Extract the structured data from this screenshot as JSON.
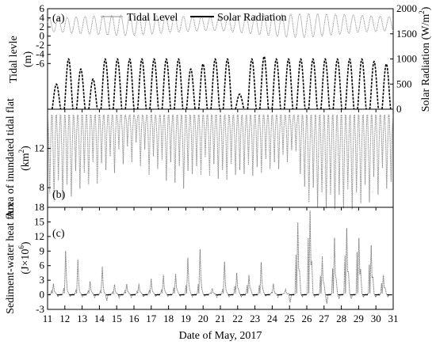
{
  "chart_data": [
    {
      "type": "line",
      "panel_label": "(a)",
      "ylabel_left": "Tidal levle",
      "ylabel_left_unit": "(m)",
      "ylabel_right": "Solar Radiation (W/m",
      "ylabel_right_sup": "2",
      "ylabel_right_close": ")",
      "left_ylim": [
        -16,
        6
      ],
      "left_ticks": [
        "6",
        "4",
        "2",
        "0",
        "-2",
        "-4",
        "-6"
      ],
      "right_ylim": [
        0,
        2000
      ],
      "right_ticks": [
        "2000",
        "1500",
        "1000",
        "500",
        "0"
      ],
      "legend": [
        "Tidal Level",
        "Solar Radiation"
      ],
      "legend_position": "top",
      "tide_high_m": [
        3.9,
        4.0,
        4.1,
        4.2,
        4.3,
        4.4,
        4.5,
        4.5,
        4.6,
        4.6,
        4.6,
        4.6,
        4.5,
        4.5,
        4.4,
        4.4,
        4.3,
        4.3,
        4.2,
        4.2,
        4.2,
        4.3,
        4.4,
        4.5,
        4.6,
        4.7,
        4.8,
        4.8,
        4.9,
        4.9,
        4.9,
        4.9,
        4.8,
        4.8,
        4.7,
        4.6,
        4.5,
        4.4,
        4.3,
        4.2
      ],
      "tide_low_m": [
        1.1,
        0.9,
        0.8,
        0.6,
        0.5,
        0.4,
        0.3,
        0.2,
        0.1,
        0.1,
        0.2,
        0.3,
        0.5,
        0.6,
        0.8,
        0.9,
        1.0,
        1.1,
        1.2,
        1.2,
        1.1,
        0.9,
        0.7,
        0.5,
        0.3,
        0.1,
        -0.1,
        -0.2,
        -0.3,
        -0.3,
        -0.2,
        0.0,
        0.2,
        0.4,
        0.6,
        0.8,
        0.9,
        1.0,
        1.1,
        1.1
      ],
      "solar_day_peak_wm2": [
        500,
        1000,
        800,
        600,
        1000,
        1000,
        1000,
        1000,
        1000,
        1000,
        1000,
        800,
        900,
        1000,
        1000,
        300,
        1000,
        1050,
        1000,
        1000,
        1000,
        1000,
        1000,
        1000,
        1000,
        1000,
        950,
        900
      ]
    },
    {
      "type": "line",
      "panel_label": "(b)",
      "ylabel": "Area of inundated tidal flat",
      "ylabel_unit": "(km",
      "ylabel_unit_sup": "2",
      "ylabel_unit_close": ")",
      "ylim": [
        6,
        16
      ],
      "yticks": [
        "12",
        "8"
      ],
      "area_max_km2": 15.4,
      "area_min_km2": [
        7.4,
        6.6,
        8.7,
        6.8,
        8.3,
        7.1,
        9.7,
        7.9,
        9.5,
        8.3,
        10.6,
        8.4,
        10.5,
        9.8,
        11.2,
        9.5,
        11.9,
        10.4,
        12.2,
        10.6,
        12.6,
        10.2,
        11.9,
        9.3,
        11.2,
        9.9,
        10.8,
        8.7,
        10.6,
        8.5,
        10.2,
        7.9,
        9.7,
        9.4,
        10.2,
        9.3,
        11.1,
        9.2,
        10.4,
        8.9,
        9.8,
        8.8,
        10.4,
        9.3,
        9.8,
        9.4,
        10.3,
        9.2,
        10.1,
        9.5,
        10.9,
        9.9,
        10.6,
        9.9,
        11.3,
        10.6,
        11.8,
        11.7,
        9.4,
        8.1,
        6.5,
        8.0,
        6.0,
        7.5,
        5.9,
        7.3,
        5.8,
        7.3,
        5.9,
        7.8,
        5.8,
        7.5,
        6.4,
        8.3,
        6.5,
        9.1,
        7.3,
        10.0,
        7.9,
        8.6
      ]
    },
    {
      "type": "line",
      "panel_label": "(c)",
      "ylabel": "Sediment-water heat flux",
      "ylabel_unit_pre": "(J×10",
      "ylabel_unit_sup": "6",
      "ylabel_unit_close": ")",
      "ylim": [
        -3,
        18
      ],
      "yticks": [
        "18",
        "15",
        "12",
        "9",
        "6",
        "3",
        "0",
        "-3"
      ],
      "flux_day_peak": [
        2.3,
        9.0,
        7.3,
        2.8,
        5.8,
        2.1,
        2.2,
        2.3,
        3.3,
        4.1,
        4.3,
        7.6,
        9.4,
        1.3,
        6.8,
        4.5,
        4.1,
        6.7,
        2.3,
        1.1,
        14.9,
        17.3,
        7.9,
        11.7,
        13.7,
        11.7,
        10.2,
        4.1
      ],
      "flux_secondary_peak": [
        0.8,
        1.4,
        1.1,
        0.9,
        0.9,
        0.6,
        0.8,
        0.7,
        1.0,
        1.1,
        1.5,
        2.0,
        2.2,
        0.4,
        1.2,
        1.8,
        2.0,
        2.0,
        0.5,
        0.3,
        8.3,
        11.6,
        3.9,
        5.4,
        8.1,
        8.8,
        6.2,
        2.4
      ],
      "flux_night_min": [
        -0.4,
        -0.3,
        -0.4,
        -0.5,
        -1.2,
        -0.6,
        -0.5,
        -0.4,
        -0.3,
        -0.3,
        -0.3,
        -0.4,
        -0.3,
        -0.5,
        -0.4,
        -0.4,
        -0.3,
        -0.3,
        -0.5,
        -1.6,
        -0.4,
        -0.4,
        -1.8,
        -0.8,
        -0.8,
        -0.5,
        -0.5,
        -0.4
      ]
    }
  ],
  "x_axis": {
    "label": "Date of May, 2017",
    "range": [
      11,
      31
    ],
    "tick_labels": [
      "11",
      "12",
      "13",
      "14",
      "15",
      "16",
      "17",
      "18",
      "19",
      "20",
      "21",
      "22",
      "23",
      "24",
      "25",
      "26",
      "27",
      "28",
      "29",
      "30",
      "31"
    ]
  },
  "colors": {
    "tidal": "#8c8c8c",
    "solar": "#000000",
    "area": "#8c8c8c",
    "flux": "#7a7a7a",
    "axis": "#000000"
  }
}
